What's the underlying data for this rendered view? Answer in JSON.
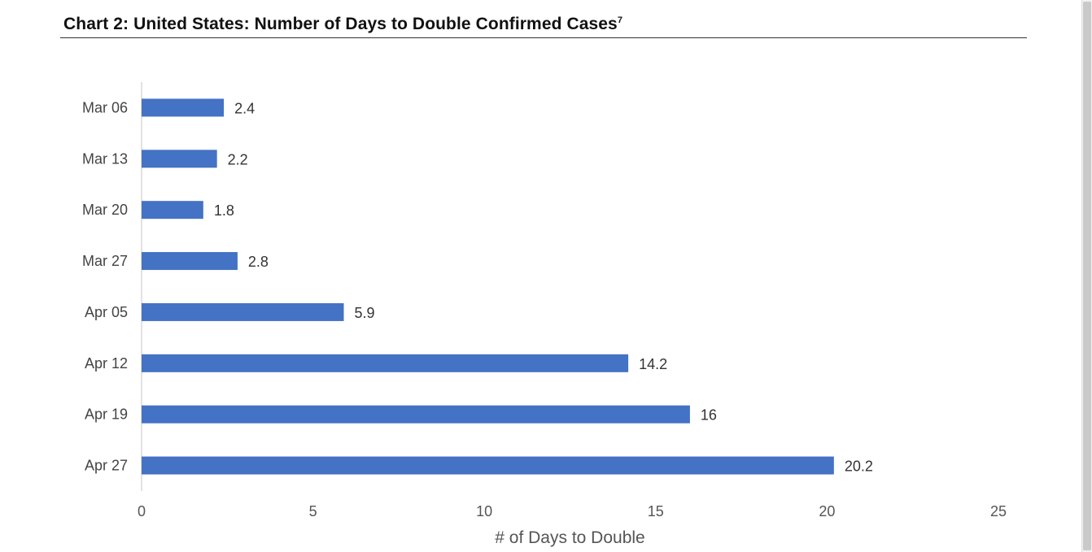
{
  "header": {
    "title": "Chart 2: United States: Number of Days to Double Confirmed Cases",
    "footnote": "7"
  },
  "chart_data": {
    "type": "bar",
    "orientation": "horizontal",
    "categories": [
      "Mar 06",
      "Mar 13",
      "Mar 20",
      "Mar 27",
      "Apr 05",
      "Apr 12",
      "Apr 19",
      "Apr 27"
    ],
    "values": [
      2.4,
      2.2,
      1.8,
      2.8,
      5.9,
      14.2,
      16,
      20.2
    ],
    "data_labels": [
      "2.4",
      "2.2",
      "1.8",
      "2.8",
      "5.9",
      "14.2",
      "16",
      "20.2"
    ],
    "xlabel": "# of Days to Double",
    "ylabel": "",
    "xlim": [
      0,
      25
    ],
    "xticks": [
      0,
      5,
      10,
      15,
      20,
      25
    ],
    "bar_color": "#4472C4",
    "grid": false,
    "legend": "none"
  }
}
